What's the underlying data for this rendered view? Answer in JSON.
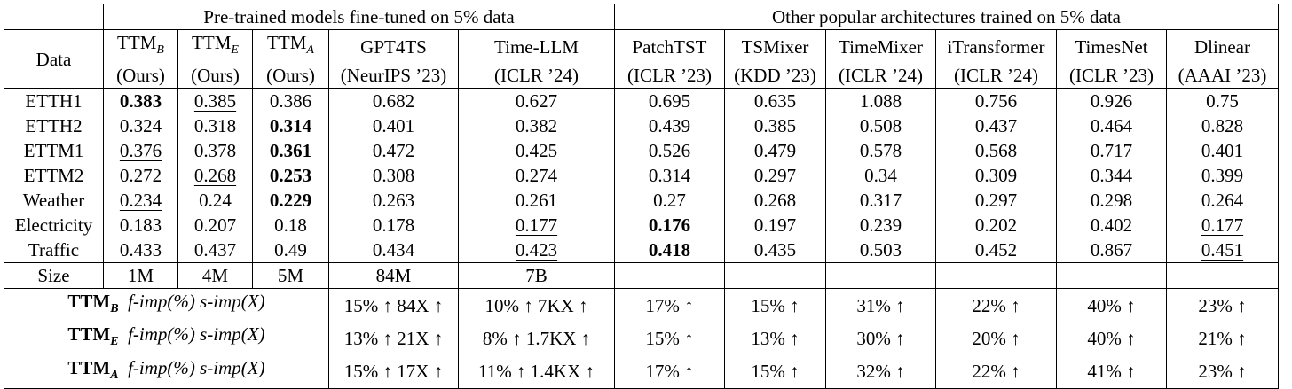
{
  "header": {
    "group_ttm": "Pre-trained models fine-tuned on 5% data",
    "group_other": "Other popular architectures trained on 5% data",
    "data_label": "Data",
    "models": [
      {
        "name": "TTM",
        "sub": "B",
        "venue": "(Ours)"
      },
      {
        "name": "TTM",
        "sub": "E",
        "venue": "(Ours)"
      },
      {
        "name": "TTM",
        "sub": "A",
        "venue": "(Ours)"
      },
      {
        "name": "GPT4TS",
        "sub": "",
        "venue": "(NeurIPS ’23)"
      },
      {
        "name": "Time-LLM",
        "sub": "",
        "venue": "(ICLR ’24)"
      },
      {
        "name": "PatchTST",
        "sub": "",
        "venue": "(ICLR ’23)"
      },
      {
        "name": "TSMixer",
        "sub": "",
        "venue": "(KDD ’23)"
      },
      {
        "name": "TimeMixer",
        "sub": "",
        "venue": "(ICLR ’24)"
      },
      {
        "name": "iTransformer",
        "sub": "",
        "venue": "(ICLR ’24)"
      },
      {
        "name": "TimesNet",
        "sub": "",
        "venue": "(ICLR ’23)"
      },
      {
        "name": "Dlinear",
        "sub": "",
        "venue": "(AAAI ’23)"
      }
    ]
  },
  "rows": [
    {
      "dataset": "ETTH1",
      "values": [
        "0.383",
        "0.385",
        "0.386",
        "0.682",
        "0.627",
        "0.695",
        "0.635",
        "1.088",
        "0.756",
        "0.926",
        "0.75"
      ],
      "bold": [
        0
      ],
      "underline": [
        1
      ]
    },
    {
      "dataset": "ETTH2",
      "values": [
        "0.324",
        "0.318",
        "0.314",
        "0.401",
        "0.382",
        "0.439",
        "0.385",
        "0.508",
        "0.437",
        "0.464",
        "0.828"
      ],
      "bold": [
        2
      ],
      "underline": [
        1
      ]
    },
    {
      "dataset": "ETTM1",
      "values": [
        "0.376",
        "0.378",
        "0.361",
        "0.472",
        "0.425",
        "0.526",
        "0.479",
        "0.578",
        "0.568",
        "0.717",
        "0.401"
      ],
      "bold": [
        2
      ],
      "underline": [
        0
      ]
    },
    {
      "dataset": "ETTM2",
      "values": [
        "0.272",
        "0.268",
        "0.253",
        "0.308",
        "0.274",
        "0.314",
        "0.297",
        "0.34",
        "0.309",
        "0.344",
        "0.399"
      ],
      "bold": [
        2
      ],
      "underline": [
        1
      ]
    },
    {
      "dataset": "Weather",
      "values": [
        "0.234",
        "0.24",
        "0.229",
        "0.263",
        "0.261",
        "0.27",
        "0.268",
        "0.317",
        "0.297",
        "0.298",
        "0.264"
      ],
      "bold": [
        2
      ],
      "underline": [
        0
      ]
    },
    {
      "dataset": "Electricity",
      "values": [
        "0.183",
        "0.207",
        "0.18",
        "0.178",
        "0.177",
        "0.176",
        "0.197",
        "0.239",
        "0.202",
        "0.402",
        "0.177"
      ],
      "bold": [
        5
      ],
      "underline": [
        4,
        10
      ]
    },
    {
      "dataset": "Traffic",
      "values": [
        "0.433",
        "0.437",
        "0.49",
        "0.434",
        "0.423",
        "0.418",
        "0.435",
        "0.503",
        "0.452",
        "0.867",
        "0.451"
      ],
      "bold": [
        5
      ],
      "underline": [
        4,
        10
      ]
    }
  ],
  "size": {
    "label": "Size",
    "values": [
      "1M",
      "4M",
      "5M",
      "84M",
      "7B",
      "",
      "",
      "",
      "",
      "",
      ""
    ]
  },
  "improvements": [
    {
      "model": "TTM",
      "sub": "B",
      "metric": "f-imp(%) s-imp(X)",
      "gpt4ts": "15% ↑ 84X ↑",
      "timellm": "10% ↑ 7KX ↑",
      "others": [
        "17% ↑",
        "15% ↑",
        "31% ↑",
        "22% ↑",
        "40% ↑",
        "23% ↑"
      ]
    },
    {
      "model": "TTM",
      "sub": "E",
      "metric": "f-imp(%) s-imp(X)",
      "gpt4ts": "13% ↑ 21X ↑",
      "timellm": "8% ↑ 1.7KX ↑",
      "others": [
        "15% ↑",
        "13% ↑",
        "30% ↑",
        "20% ↑",
        "40% ↑",
        "21% ↑"
      ]
    },
    {
      "model": "TTM",
      "sub": "A",
      "metric": "f-imp(%) s-imp(X)",
      "gpt4ts": "15% ↑ 17X ↑",
      "timellm": "11% ↑ 1.4KX ↑",
      "others": [
        "17% ↑",
        "15% ↑",
        "32% ↑",
        "22% ↑",
        "41% ↑",
        "23% ↑"
      ]
    }
  ]
}
